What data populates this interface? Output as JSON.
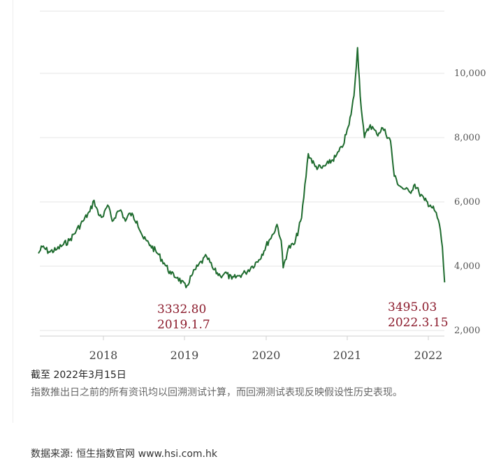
{
  "chart_data": {
    "type": "line",
    "line_color": "#1e6b2e",
    "x_ticks": [
      "2018",
      "2019",
      "2020",
      "2021",
      "2022"
    ],
    "y_ticks": [
      "2,000",
      "4,000",
      "6,000",
      "8,000",
      "10,000"
    ],
    "ylim": [
      2000,
      10000
    ],
    "grid": true,
    "series": [
      {
        "points": [
          [
            "2017-03-15",
            4400
          ],
          [
            "2017-04-01",
            4600
          ],
          [
            "2017-05-01",
            4450
          ],
          [
            "2017-06-01",
            4500
          ],
          [
            "2017-07-01",
            4650
          ],
          [
            "2017-08-01",
            4800
          ],
          [
            "2017-09-01",
            5100
          ],
          [
            "2017-10-01",
            5400
          ],
          [
            "2017-11-01",
            5700
          ],
          [
            "2017-11-20",
            6050
          ],
          [
            "2017-12-10",
            5600
          ],
          [
            "2018-01-01",
            5550
          ],
          [
            "2018-01-20",
            5900
          ],
          [
            "2018-02-10",
            5400
          ],
          [
            "2018-03-01",
            5650
          ],
          [
            "2018-03-20",
            5750
          ],
          [
            "2018-04-10",
            5400
          ],
          [
            "2018-05-01",
            5650
          ],
          [
            "2018-06-01",
            5400
          ],
          [
            "2018-07-01",
            4850
          ],
          [
            "2018-08-01",
            4650
          ],
          [
            "2018-09-01",
            4400
          ],
          [
            "2018-10-01",
            4100
          ],
          [
            "2018-11-01",
            3750
          ],
          [
            "2018-12-01",
            3650
          ],
          [
            "2019-01-07",
            3333
          ],
          [
            "2019-02-01",
            3700
          ],
          [
            "2019-03-01",
            4000
          ],
          [
            "2019-04-10",
            4300
          ],
          [
            "2019-05-10",
            3900
          ],
          [
            "2019-06-10",
            3700
          ],
          [
            "2019-07-01",
            3800
          ],
          [
            "2019-08-01",
            3600
          ],
          [
            "2019-09-01",
            3700
          ],
          [
            "2019-10-01",
            3800
          ],
          [
            "2019-11-01",
            4000
          ],
          [
            "2019-12-01",
            4200
          ],
          [
            "2020-01-15",
            4800
          ],
          [
            "2020-02-03",
            5000
          ],
          [
            "2020-02-20",
            5300
          ],
          [
            "2020-03-10",
            4800
          ],
          [
            "2020-03-19",
            3950
          ],
          [
            "2020-04-10",
            4550
          ],
          [
            "2020-05-10",
            4700
          ],
          [
            "2020-06-10",
            5500
          ],
          [
            "2020-07-10",
            7500
          ],
          [
            "2020-08-10",
            7100
          ],
          [
            "2020-09-10",
            7050
          ],
          [
            "2020-10-10",
            7200
          ],
          [
            "2020-11-10",
            7400
          ],
          [
            "2020-12-10",
            7700
          ],
          [
            "2021-01-10",
            8400
          ],
          [
            "2021-02-01",
            9300
          ],
          [
            "2021-02-17",
            10800
          ],
          [
            "2021-03-01",
            9300
          ],
          [
            "2021-03-20",
            8000
          ],
          [
            "2021-04-15",
            8400
          ],
          [
            "2021-05-15",
            8100
          ],
          [
            "2021-06-10",
            8300
          ],
          [
            "2021-07-15",
            7900
          ],
          [
            "2021-08-01",
            6800
          ],
          [
            "2021-08-25",
            6500
          ],
          [
            "2021-09-15",
            6400
          ],
          [
            "2021-10-10",
            6300
          ],
          [
            "2021-11-01",
            6550
          ],
          [
            "2021-11-20",
            6300
          ],
          [
            "2021-12-15",
            6050
          ],
          [
            "2022-01-10",
            5900
          ],
          [
            "2022-02-01",
            5700
          ],
          [
            "2022-02-20",
            5300
          ],
          [
            "2022-03-05",
            4600
          ],
          [
            "2022-03-15",
            3495
          ]
        ]
      }
    ],
    "annotations": [
      {
        "value": "3332.80",
        "date": "2019.1.7"
      },
      {
        "value": "3495.03",
        "date": "2022.3.15"
      }
    ]
  },
  "caption": {
    "as_of": "截至 2022年3月15日",
    "note": "指数推出日之前的所有资讯均以回溯测试计算，而回溯测试表现反映假设性历史表现。"
  },
  "source": "数据来源: 恒生指数官网 www.hsi.com.hk"
}
